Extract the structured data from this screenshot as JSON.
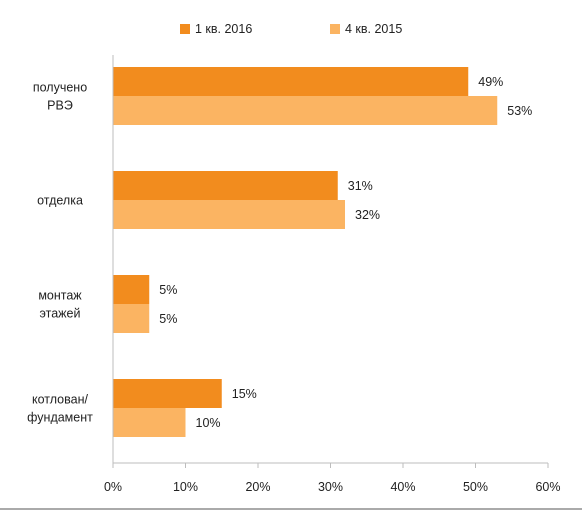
{
  "chart_data": {
    "type": "bar",
    "orientation": "horizontal",
    "categories": [
      [
        "получено",
        "РВЭ"
      ],
      [
        "отделка"
      ],
      [
        "монтаж",
        "этажей"
      ],
      [
        "котлован/",
        "фундамент"
      ]
    ],
    "series": [
      {
        "name": "1 кв. 2016",
        "color": "#f28c1e",
        "values": [
          49,
          31,
          5,
          15
        ],
        "labels": [
          "49%",
          "31%",
          "5%",
          "15%"
        ]
      },
      {
        "name": "4 кв. 2015",
        "color": "#fbb462",
        "values": [
          53,
          32,
          5,
          10
        ],
        "labels": [
          "53%",
          "32%",
          "5%",
          "10%"
        ]
      }
    ],
    "xlim": [
      0,
      60
    ],
    "xticks": [
      0,
      10,
      20,
      30,
      40,
      50,
      60
    ],
    "xtick_labels": [
      "0%",
      "10%",
      "20%",
      "30%",
      "40%",
      "50%",
      "60%"
    ],
    "grid": false,
    "legend_position": "top"
  }
}
